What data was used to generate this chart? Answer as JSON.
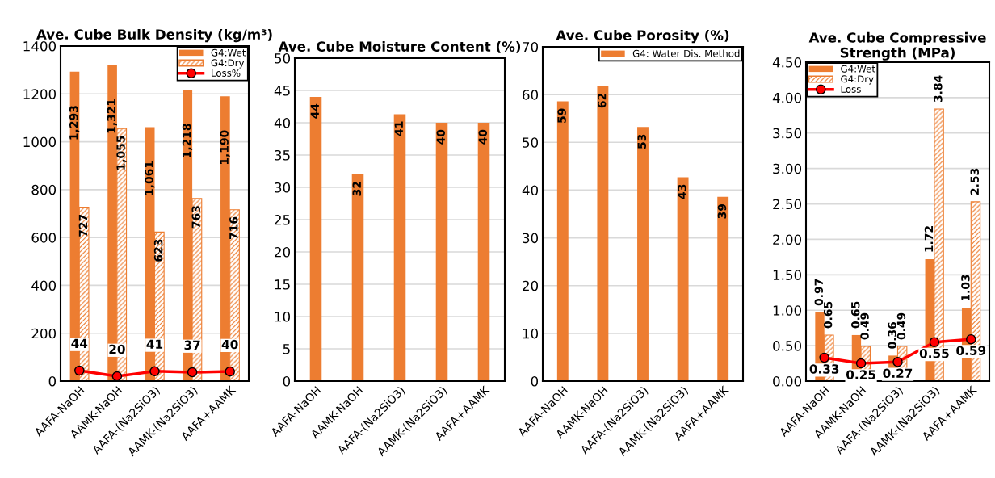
{
  "chart_data": [
    {
      "type": "bar",
      "title": "Ave. Cube Bulk Density (kg/m³)",
      "categories": [
        "AAFA-NaOH",
        "AAMK-NaOH",
        "AAFA-(Na2SiO3)",
        "AAMK-(Na2SiO3)",
        "AAFA+AAMK"
      ],
      "series": [
        {
          "name": "G4:Wet",
          "color": "#ed7d31",
          "values": [
            1293,
            1321,
            1061,
            1218,
            1190
          ],
          "value_labels": [
            "1,293",
            "1,321",
            "1,061",
            "1,218",
            "1,190"
          ]
        },
        {
          "name": "G4:Dry",
          "color": "#ed7d31",
          "values": [
            727,
            1055,
            623,
            763,
            716
          ],
          "value_labels": [
            "727",
            "1,055",
            "623",
            "763",
            "716"
          ]
        },
        {
          "name": "Loss%",
          "type": "line",
          "color": "#ff0000",
          "values": [
            44,
            20,
            41,
            37,
            40
          ],
          "value_labels": [
            "44",
            "20",
            "41",
            "37",
            "40"
          ]
        }
      ],
      "ylim": [
        0,
        1400
      ],
      "yticks": [
        0,
        200,
        400,
        600,
        800,
        1000,
        1200,
        1400
      ],
      "grid": "y",
      "legend": "top right",
      "marker": "circle"
    },
    {
      "type": "bar",
      "title": "Ave. Cube Moisture Content (%)",
      "categories": [
        "AAFA-NaOH",
        "AAMK-NaOH",
        "AAFA-(Na2SiO3)",
        "AAMK-(Na2SiO3)",
        "AAFA+AAMK"
      ],
      "series": [
        {
          "color": "#ed7d31",
          "values": [
            44,
            32,
            41.3,
            40,
            40
          ],
          "value_labels": [
            "44",
            "32",
            "41",
            "40",
            "40"
          ]
        }
      ],
      "ylim": [
        0,
        50
      ],
      "yticks": [
        0,
        5,
        10,
        15,
        20,
        25,
        30,
        35,
        40,
        45,
        50
      ],
      "grid": "y"
    },
    {
      "type": "bar",
      "title": "Ave. Cube Porosity (%)",
      "categories": [
        "AAFA-NaOH",
        "AAMK-NaOH",
        "AAFA-(Na2SiO3)",
        "AAMK-(Na2SiO3)",
        "AAFA+AAMK"
      ],
      "series": [
        {
          "name": "G4: Water Dis. Method",
          "color": "#ed7d31",
          "values": [
            58.6,
            61.8,
            53.2,
            42.7,
            38.6
          ],
          "value_labels": [
            "59",
            "62",
            "53",
            "43",
            "39"
          ]
        }
      ],
      "ylim": [
        0,
        70
      ],
      "yticks": [
        0,
        10,
        20,
        30,
        40,
        50,
        60,
        70
      ],
      "grid": "y",
      "legend": "top right"
    },
    {
      "type": "bar",
      "title": "Ave. Cube Compressive Strength (MPa)",
      "categories": [
        "AAFA-NaOH",
        "AAMK-NaOH",
        "AAFA-(Na2SiO3)",
        "AAMK-(Na2SiO3)",
        "AAFA+AAMK"
      ],
      "series": [
        {
          "name": "G4:Wet",
          "color": "#ed7d31",
          "values": [
            0.97,
            0.65,
            0.36,
            1.72,
            1.03
          ]
        },
        {
          "name": "G4:Dry",
          "color": "#ed7d31",
          "values": [
            0.65,
            0.49,
            0.49,
            3.84,
            2.53
          ]
        },
        {
          "name": "Loss",
          "type": "line",
          "color": "#ff0000",
          "values": [
            0.33,
            0.25,
            0.27,
            0.55,
            0.59
          ]
        }
      ],
      "data_labels": true,
      "ylim": [
        0,
        4.5
      ],
      "yticks": [
        {
          "value": 0,
          "label": "0.00"
        },
        {
          "value": 0.5,
          "label": "0.50"
        },
        {
          "value": 1,
          "label": "1.00"
        },
        {
          "value": 1.5,
          "label": "1.50"
        },
        {
          "value": 2,
          "label": "2.00"
        },
        {
          "value": 2.5,
          "label": "2.50"
        },
        {
          "value": 3,
          "label": "3.00"
        },
        {
          "value": 3.5,
          "label": "3.50"
        },
        {
          "value": 4,
          "label": "4.00"
        },
        {
          "value": 4.5,
          "label": "4.50"
        }
      ],
      "grid": "y",
      "legend": "top left",
      "marker": "circle"
    }
  ]
}
